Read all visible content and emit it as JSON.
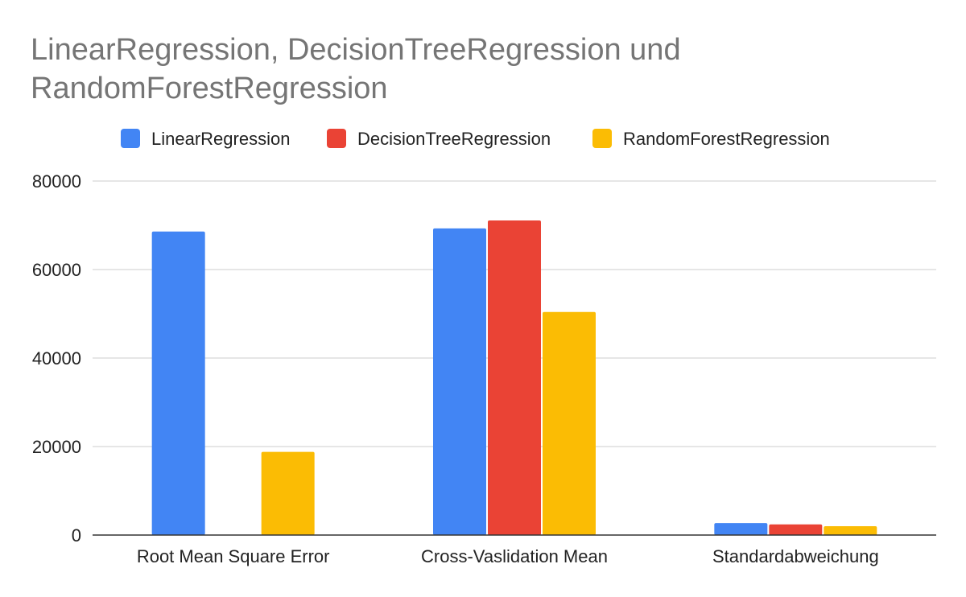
{
  "chart_data": {
    "type": "bar",
    "title": "LinearRegression, DecisionTreeRegression und RandomForestRegression",
    "categories": [
      "Root Mean Square Error",
      "Cross-Vaslidation Mean",
      "Standardabweichung"
    ],
    "series": [
      {
        "name": "LinearRegression",
        "color": "#4285F4",
        "values": [
          68600,
          69300,
          2700
        ]
      },
      {
        "name": "DecisionTreeRegression",
        "color": "#EA4335",
        "values": [
          0,
          71100,
          2400
        ]
      },
      {
        "name": "RandomForestRegression",
        "color": "#FBBC04",
        "values": [
          18800,
          50400,
          2000
        ]
      }
    ],
    "ylim": [
      0,
      80000
    ],
    "yticks": [
      0,
      20000,
      40000,
      60000,
      80000
    ],
    "xlabel": "",
    "ylabel": "",
    "grid": true,
    "legend_position": "top"
  }
}
